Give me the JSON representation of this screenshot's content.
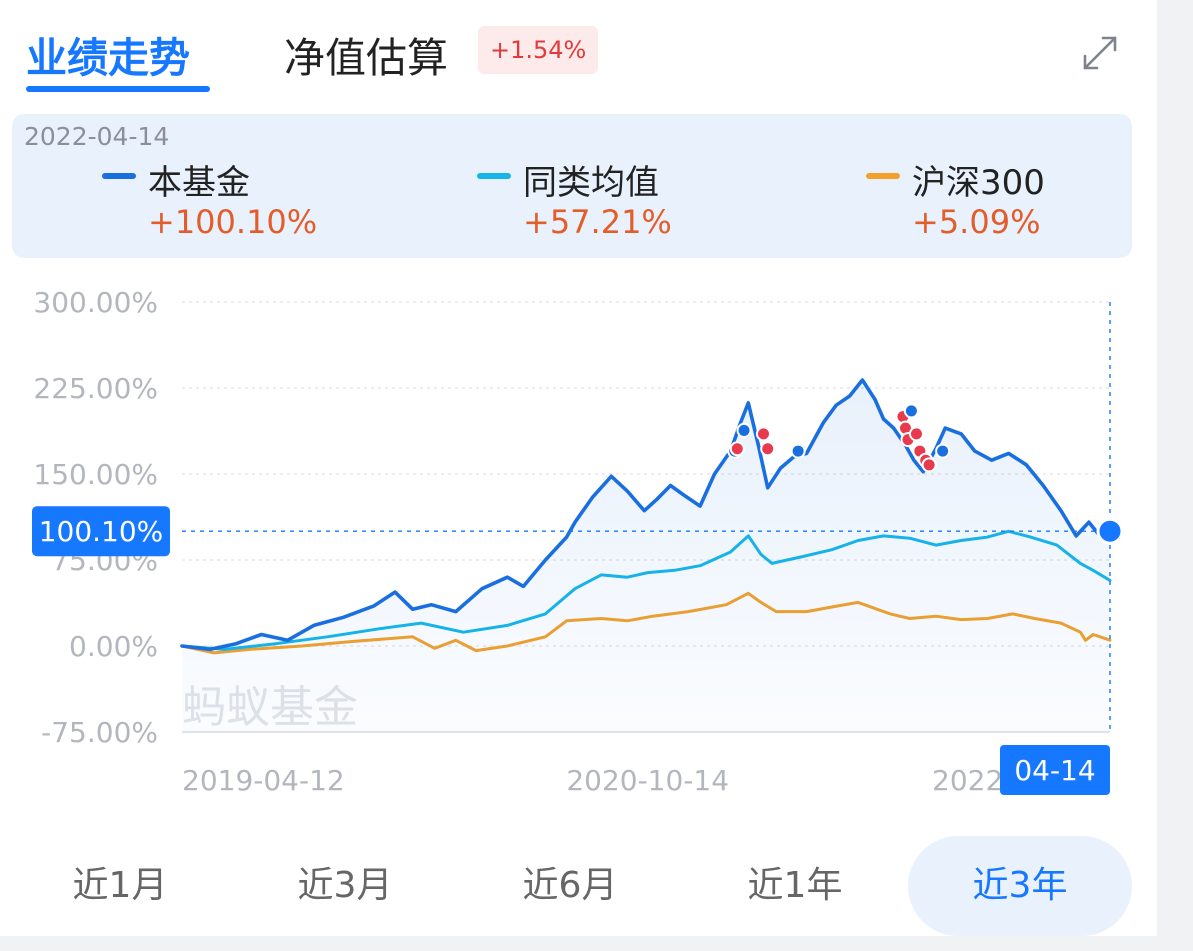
{
  "tabs": {
    "performance": "业绩走势",
    "estimate": "净值估算",
    "estimate_badge": "+1.54%"
  },
  "legend": {
    "date": "2022-04-14",
    "items": [
      {
        "name": "本基金",
        "value": "+100.10%",
        "color": "#1a6fe0"
      },
      {
        "name": "同类均值",
        "value": "+57.21%",
        "color": "#16b6e8"
      },
      {
        "name": "沪深300",
        "value": "+5.09%",
        "color": "#f3a12a"
      }
    ]
  },
  "chart_data": {
    "type": "line",
    "ylim": [
      -75,
      300
    ],
    "y_ticks": [
      "300.00%",
      "225.00%",
      "150.00%",
      "75.00%",
      "0.00%",
      "-75.00%"
    ],
    "y_tick_values": [
      300,
      225,
      150,
      75,
      0,
      -75
    ],
    "x_range": [
      "2019-04-12",
      "2022-04-14"
    ],
    "x_tick_labels": [
      "2019-04-12",
      "2020-10-14",
      "2022"
    ],
    "x_tick_dates": [
      "2019-04-12",
      "2020-10-14",
      "2022-01-01"
    ],
    "grid": true,
    "watermark": "蚂蚁基金",
    "current_value_label": "100.10%",
    "current_value": 100.1,
    "current_date_label": "04-14",
    "series": [
      {
        "name": "本基金",
        "color": "#1a6fe0",
        "points": [
          [
            "2019-04-12",
            0
          ],
          [
            "2019-05-15",
            -3
          ],
          [
            "2019-06-15",
            2
          ],
          [
            "2019-07-15",
            10
          ],
          [
            "2019-08-15",
            5
          ],
          [
            "2019-09-15",
            18
          ],
          [
            "2019-10-20",
            25
          ],
          [
            "2019-11-25",
            35
          ],
          [
            "2019-12-20",
            47
          ],
          [
            "2020-01-10",
            32
          ],
          [
            "2020-02-01",
            36
          ],
          [
            "2020-03-01",
            30
          ],
          [
            "2020-04-01",
            50
          ],
          [
            "2020-05-01",
            60
          ],
          [
            "2020-05-20",
            52
          ],
          [
            "2020-06-15",
            75
          ],
          [
            "2020-07-10",
            95
          ],
          [
            "2020-07-20",
            108
          ],
          [
            "2020-08-10",
            130
          ],
          [
            "2020-09-01",
            148
          ],
          [
            "2020-09-20",
            135
          ],
          [
            "2020-10-10",
            118
          ],
          [
            "2020-10-25",
            128
          ],
          [
            "2020-11-10",
            140
          ],
          [
            "2020-11-25",
            132
          ],
          [
            "2020-12-15",
            122
          ],
          [
            "2021-01-01",
            150
          ],
          [
            "2021-01-20",
            170
          ],
          [
            "2021-02-01",
            195
          ],
          [
            "2021-02-10",
            212
          ],
          [
            "2021-02-22",
            175
          ],
          [
            "2021-03-05",
            138
          ],
          [
            "2021-03-20",
            155
          ],
          [
            "2021-04-05",
            165
          ],
          [
            "2021-04-20",
            168
          ],
          [
            "2021-05-10",
            195
          ],
          [
            "2021-05-25",
            210
          ],
          [
            "2021-06-10",
            218
          ],
          [
            "2021-06-25",
            232
          ],
          [
            "2021-07-10",
            215
          ],
          [
            "2021-07-20",
            198
          ],
          [
            "2021-08-01",
            190
          ],
          [
            "2021-08-15",
            175
          ],
          [
            "2021-08-25",
            162
          ],
          [
            "2021-09-05",
            152
          ],
          [
            "2021-09-20",
            172
          ],
          [
            "2021-10-01",
            190
          ],
          [
            "2021-10-20",
            185
          ],
          [
            "2021-11-05",
            170
          ],
          [
            "2021-11-25",
            162
          ],
          [
            "2021-12-15",
            168
          ],
          [
            "2022-01-05",
            158
          ],
          [
            "2022-01-25",
            140
          ],
          [
            "2022-02-15",
            118
          ],
          [
            "2022-03-05",
            96
          ],
          [
            "2022-03-20",
            108
          ],
          [
            "2022-04-01",
            97
          ],
          [
            "2022-04-14",
            100.1
          ]
        ],
        "markers": [
          {
            "date": "2021-01-25",
            "value": 170,
            "kind": "blue"
          },
          {
            "date": "2021-02-05",
            "value": 188,
            "kind": "blue"
          },
          {
            "date": "2021-01-28",
            "value": 172,
            "kind": "red"
          },
          {
            "date": "2021-02-28",
            "value": 185,
            "kind": "red"
          },
          {
            "date": "2021-03-05",
            "value": 172,
            "kind": "red"
          },
          {
            "date": "2021-04-10",
            "value": 170,
            "kind": "blue"
          },
          {
            "date": "2021-08-12",
            "value": 200,
            "kind": "red"
          },
          {
            "date": "2021-08-15",
            "value": 190,
            "kind": "red"
          },
          {
            "date": "2021-08-18",
            "value": 180,
            "kind": "red"
          },
          {
            "date": "2021-08-22",
            "value": 205,
            "kind": "blue"
          },
          {
            "date": "2021-08-28",
            "value": 185,
            "kind": "red"
          },
          {
            "date": "2021-09-01",
            "value": 170,
            "kind": "red"
          },
          {
            "date": "2021-09-08",
            "value": 162,
            "kind": "red"
          },
          {
            "date": "2021-09-12",
            "value": 158,
            "kind": "red"
          },
          {
            "date": "2021-09-28",
            "value": 170,
            "kind": "blue"
          }
        ]
      },
      {
        "name": "同类均值",
        "color": "#16b6e8",
        "points": [
          [
            "2019-04-12",
            0
          ],
          [
            "2019-06-01",
            -3
          ],
          [
            "2019-08-01",
            2
          ],
          [
            "2019-10-01",
            8
          ],
          [
            "2019-12-01",
            15
          ],
          [
            "2020-01-20",
            20
          ],
          [
            "2020-03-10",
            12
          ],
          [
            "2020-05-01",
            18
          ],
          [
            "2020-06-15",
            28
          ],
          [
            "2020-07-20",
            50
          ],
          [
            "2020-08-20",
            62
          ],
          [
            "2020-09-20",
            60
          ],
          [
            "2020-10-14",
            64
          ],
          [
            "2020-11-15",
            66
          ],
          [
            "2020-12-15",
            70
          ],
          [
            "2021-01-20",
            82
          ],
          [
            "2021-02-10",
            96
          ],
          [
            "2021-02-25",
            80
          ],
          [
            "2021-03-10",
            72
          ],
          [
            "2021-04-15",
            78
          ],
          [
            "2021-05-20",
            84
          ],
          [
            "2021-06-20",
            92
          ],
          [
            "2021-07-20",
            96
          ],
          [
            "2021-08-20",
            94
          ],
          [
            "2021-09-20",
            88
          ],
          [
            "2021-10-20",
            92
          ],
          [
            "2021-11-20",
            95
          ],
          [
            "2021-12-15",
            100
          ],
          [
            "2022-01-10",
            95
          ],
          [
            "2022-02-10",
            88
          ],
          [
            "2022-03-10",
            72
          ],
          [
            "2022-03-25",
            66
          ],
          [
            "2022-04-14",
            57.21
          ]
        ]
      },
      {
        "name": "沪深300",
        "color": "#f3a12a",
        "points": [
          [
            "2019-04-12",
            0
          ],
          [
            "2019-05-20",
            -6
          ],
          [
            "2019-07-01",
            -3
          ],
          [
            "2019-09-01",
            0
          ],
          [
            "2019-11-01",
            4
          ],
          [
            "2020-01-10",
            8
          ],
          [
            "2020-02-05",
            -2
          ],
          [
            "2020-03-01",
            5
          ],
          [
            "2020-03-25",
            -4
          ],
          [
            "2020-05-01",
            0
          ],
          [
            "2020-06-15",
            8
          ],
          [
            "2020-07-10",
            22
          ],
          [
            "2020-08-20",
            24
          ],
          [
            "2020-09-20",
            22
          ],
          [
            "2020-10-20",
            26
          ],
          [
            "2020-12-01",
            30
          ],
          [
            "2021-01-15",
            36
          ],
          [
            "2021-02-10",
            46
          ],
          [
            "2021-02-25",
            38
          ],
          [
            "2021-03-15",
            30
          ],
          [
            "2021-04-20",
            30
          ],
          [
            "2021-05-20",
            34
          ],
          [
            "2021-06-20",
            38
          ],
          [
            "2021-07-28",
            28
          ],
          [
            "2021-08-20",
            24
          ],
          [
            "2021-09-20",
            26
          ],
          [
            "2021-10-20",
            23
          ],
          [
            "2021-11-20",
            24
          ],
          [
            "2021-12-20",
            28
          ],
          [
            "2022-01-15",
            24
          ],
          [
            "2022-02-15",
            20
          ],
          [
            "2022-03-10",
            12
          ],
          [
            "2022-03-16",
            5
          ],
          [
            "2022-03-25",
            10
          ],
          [
            "2022-04-14",
            5.09
          ]
        ]
      }
    ]
  },
  "ranges": [
    {
      "label": "近1月",
      "active": false
    },
    {
      "label": "近3月",
      "active": false
    },
    {
      "label": "近6月",
      "active": false
    },
    {
      "label": "近1年",
      "active": false
    },
    {
      "label": "近3年",
      "active": true
    }
  ]
}
